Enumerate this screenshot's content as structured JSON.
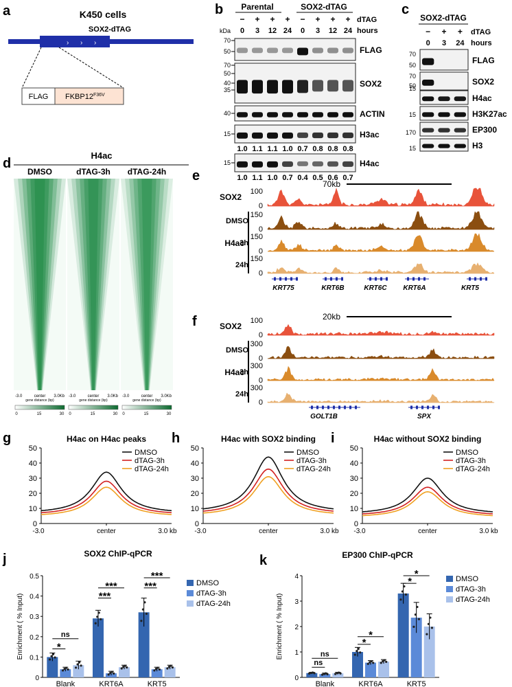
{
  "colors": {
    "navy": "#1f2fa8",
    "sox2_track": "#e8533a",
    "dmso_track": "#8b4e10",
    "h3_track": "#d98a2b",
    "h24_track": "#e7b070",
    "heat_green": "#1f8a45",
    "prof_black": "#111111",
    "prof_red": "#d22020",
    "prof_orange": "#f0a020",
    "bar_dmso": "#3466b0",
    "bar_3h": "#5b8ad8",
    "bar_24h": "#a9c1ea"
  },
  "panel_a": {
    "letter": "a",
    "title": "K450 cells",
    "construct": "SOX2-dTAG",
    "box_flag": "FLAG",
    "box_fkbp": "FKBP12",
    "box_fkbp_sup": "F36V"
  },
  "panel_b": {
    "letter": "b",
    "group1": "Parental",
    "group2": "SOX2-dTAG",
    "dtag_label": "dTAG",
    "hours_label": "hours",
    "kda": "kDa",
    "signs": [
      "−",
      "+",
      "+",
      "+",
      "−",
      "+",
      "+",
      "+"
    ],
    "hours": [
      "0",
      "3",
      "12",
      "24",
      "0",
      "3",
      "12",
      "24"
    ],
    "blots": [
      {
        "label": "FLAG",
        "markers": [
          "70",
          "50"
        ]
      },
      {
        "label": "SOX2",
        "markers": [
          "70",
          "50",
          "40",
          "35"
        ]
      },
      {
        "label": "ACTIN",
        "markers": [
          "40"
        ]
      },
      {
        "label": "H3ac",
        "markers": [
          "15"
        ],
        "quant": [
          "1.0",
          "1.1",
          "1.1",
          "1.0",
          "0.7",
          "0.8",
          "0.8",
          "0.8"
        ]
      },
      {
        "label": "H4ac",
        "markers": [
          "15"
        ],
        "quant": [
          "1.0",
          "1.1",
          "1.0",
          "0.7",
          "0.4",
          "0.5",
          "0.6",
          "0.7"
        ]
      }
    ]
  },
  "panel_c": {
    "letter": "c",
    "group": "SOX2-dTAG",
    "dtag_label": "dTAG",
    "hours_label": "hours",
    "signs": [
      "−",
      "+",
      "+"
    ],
    "hours": [
      "0",
      "3",
      "24"
    ],
    "blots": [
      {
        "label": "FLAG",
        "markers": [
          "70",
          "50"
        ]
      },
      {
        "label": "SOX2",
        "markers": [
          "70",
          "50"
        ]
      },
      {
        "label": "H4ac",
        "markers": [
          "15"
        ]
      },
      {
        "label": "H3K27ac",
        "markers": [
          "15"
        ]
      },
      {
        "label": "EP300",
        "markers": [
          "170"
        ]
      },
      {
        "label": "H3",
        "markers": [
          "15"
        ]
      }
    ]
  },
  "panel_d": {
    "letter": "d",
    "title": "H4ac",
    "cols": [
      "DMSO",
      "dTAG-3h",
      "dTAG-24h"
    ],
    "axis_left": "-3.0",
    "axis_mid": "center",
    "axis_right": "3.0Kb",
    "axis_caption": "gene distance (bp)",
    "scale": [
      "0",
      "15",
      "30"
    ]
  },
  "panel_e": {
    "letter": "e",
    "scalebar": "70kb",
    "sox2": "SOX2",
    "group": "H4ac",
    "tracks": [
      {
        "label": "SOX2",
        "ticks": [
          "100",
          "0"
        ]
      },
      {
        "label": "DMSO",
        "ticks": [
          "150",
          "0"
        ]
      },
      {
        "label": "3h",
        "ticks": [
          "150",
          "0"
        ]
      },
      {
        "label": "24h",
        "ticks": [
          "150",
          "0"
        ]
      }
    ],
    "genes": [
      "KRT75",
      "KRT6B",
      "KRT6C",
      "KRT6A",
      "KRT5"
    ]
  },
  "panel_f": {
    "letter": "f",
    "scalebar": "20kb",
    "group": "H4ac",
    "tracks": [
      {
        "label": "SOX2",
        "ticks": [
          "100",
          "0"
        ]
      },
      {
        "label": "DMSO",
        "ticks": [
          "300",
          "0"
        ]
      },
      {
        "label": "3h",
        "ticks": [
          "300",
          "0"
        ]
      },
      {
        "label": "24h",
        "ticks": [
          "300",
          "0"
        ]
      }
    ],
    "genes": [
      "GOLT1B",
      "SPX"
    ]
  },
  "profiles": {
    "legend": [
      "DMSO",
      "dTAG-3h",
      "dTAG-24h"
    ],
    "x_ticks": [
      "-3.0",
      "center",
      "3.0 kb"
    ],
    "y_ticks": [
      "0",
      "10",
      "20",
      "30",
      "40",
      "50"
    ],
    "panels": [
      {
        "letter": "g",
        "title": "H4ac on H4ac peaks",
        "peaks": [
          34,
          28,
          24
        ],
        "base": [
          6.5,
          5.5,
          4.5
        ]
      },
      {
        "letter": "h",
        "title": "H4ac with SOX2 binding",
        "peaks": [
          44,
          36,
          31
        ],
        "base": [
          7,
          6,
          5
        ]
      },
      {
        "letter": "i",
        "title": "H4ac without SOX2 binding",
        "peaks": [
          30,
          24,
          21
        ],
        "base": [
          6,
          5,
          4
        ]
      }
    ]
  },
  "chart_data": [
    {
      "type": "bar",
      "letter": "j",
      "title": "SOX2 ChIP-qPCR",
      "ylabel": "Enrichment ( % Input)",
      "ylim": [
        0,
        0.5
      ],
      "yticks": [
        "0",
        "0.1",
        "0.2",
        "0.3",
        "0.4",
        "0.5"
      ],
      "categories": [
        "Blank",
        "KRT6A",
        "KRT5"
      ],
      "series": [
        {
          "name": "DMSO",
          "values": [
            0.1,
            0.29,
            0.32
          ],
          "err": [
            0.02,
            0.04,
            0.07
          ]
        },
        {
          "name": "dTAG-3h",
          "values": [
            0.04,
            0.02,
            0.04
          ],
          "err": [
            0.01,
            0.01,
            0.01
          ]
        },
        {
          "name": "dTAG-24h",
          "values": [
            0.06,
            0.05,
            0.05
          ],
          "err": [
            0.02,
            0.01,
            0.01
          ]
        }
      ],
      "significance": [
        {
          "cat": 0,
          "from": 0,
          "to": 1,
          "label": "*",
          "y": 0.14
        },
        {
          "cat": 0,
          "from": 0,
          "to": 2,
          "label": "ns",
          "y": 0.19
        },
        {
          "cat": 1,
          "from": 0,
          "to": 1,
          "label": "***",
          "y": 0.39
        },
        {
          "cat": 1,
          "from": 0,
          "to": 2,
          "label": "***",
          "y": 0.44
        },
        {
          "cat": 2,
          "from": 0,
          "to": 1,
          "label": "***",
          "y": 0.44
        },
        {
          "cat": 2,
          "from": 0,
          "to": 2,
          "label": "***",
          "y": 0.49
        }
      ]
    },
    {
      "type": "bar",
      "letter": "k",
      "title": "EP300 ChIP-qPCR",
      "ylabel": "Enrichment ( % Input)",
      "ylim": [
        0,
        4
      ],
      "yticks": [
        "0",
        "1",
        "2",
        "3",
        "4"
      ],
      "categories": [
        "Blank",
        "KRT6A",
        "KRT5"
      ],
      "series": [
        {
          "name": "DMSO",
          "values": [
            0.17,
            1.0,
            3.3
          ],
          "err": [
            0.03,
            0.18,
            0.4
          ]
        },
        {
          "name": "dTAG-3h",
          "values": [
            0.13,
            0.58,
            2.35
          ],
          "err": [
            0.04,
            0.08,
            0.6
          ]
        },
        {
          "name": "dTAG-24h",
          "values": [
            0.16,
            0.62,
            2.0
          ],
          "err": [
            0.04,
            0.08,
            0.5
          ]
        }
      ],
      "significance": [
        {
          "cat": 0,
          "from": 0,
          "to": 1,
          "label": "ns",
          "y": 0.4
        },
        {
          "cat": 0,
          "from": 0,
          "to": 2,
          "label": "ns",
          "y": 0.75
        },
        {
          "cat": 1,
          "from": 0,
          "to": 1,
          "label": "*",
          "y": 1.3
        },
        {
          "cat": 1,
          "from": 0,
          "to": 2,
          "label": "*",
          "y": 1.6
        },
        {
          "cat": 2,
          "from": 0,
          "to": 1,
          "label": "*",
          "y": 3.7
        },
        {
          "cat": 2,
          "from": 0,
          "to": 2,
          "label": "*",
          "y": 4.0
        }
      ]
    }
  ]
}
